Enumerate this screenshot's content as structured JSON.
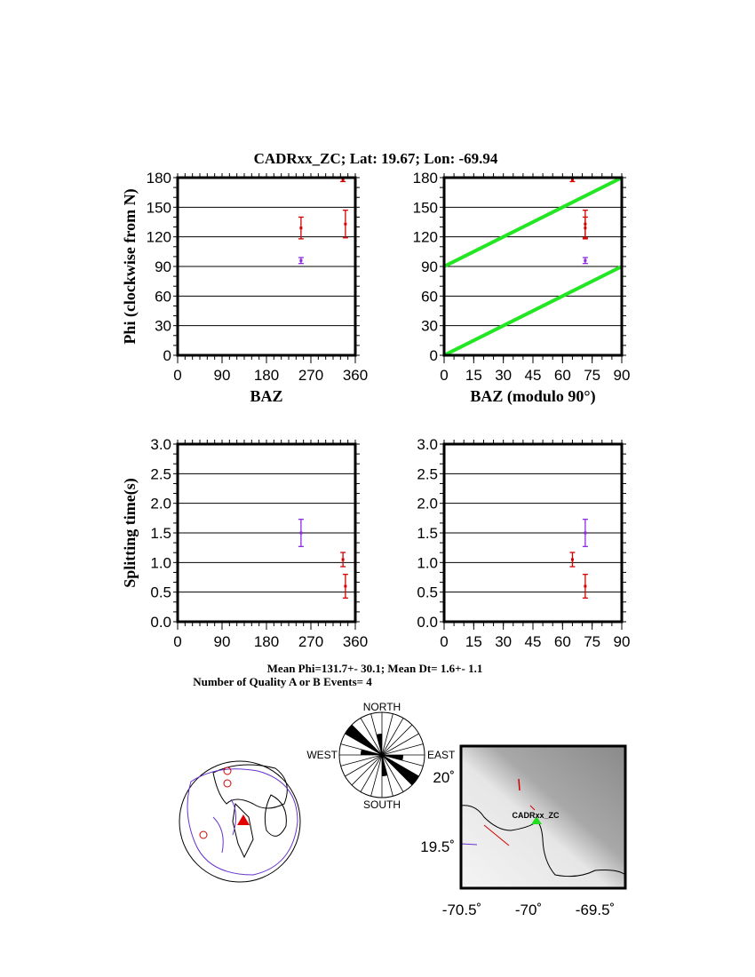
{
  "title": "CADRxx_ZC; Lat:  19.67;  Lon:  -69.94",
  "colors": {
    "event_red": "#d40000",
    "event_purple": "#8a2be2",
    "reference_line": "#22e622",
    "station": "#22dd22"
  },
  "chart_data": [
    {
      "type": "scatter",
      "ylabel": "Phi (clockwise from N)",
      "xlabel": "BAZ",
      "xlim": [
        0,
        360
      ],
      "ylim": [
        0,
        180
      ],
      "xticks": [
        0,
        90,
        180,
        270,
        360
      ],
      "yticks": [
        0,
        30,
        60,
        90,
        120,
        150,
        180
      ],
      "grid": true,
      "points": [
        {
          "x": 250,
          "y": 129,
          "err": 11,
          "color": "red"
        },
        {
          "x": 250,
          "y": 96,
          "err": 3,
          "color": "purple"
        },
        {
          "x": 340,
          "y": 133,
          "err": 14,
          "color": "red"
        },
        {
          "x": 335,
          "y": 178,
          "err": 2,
          "color": "red"
        }
      ]
    },
    {
      "type": "scatter",
      "ylabel": "",
      "xlabel": "BAZ (modulo 90°)",
      "xlim": [
        0,
        90
      ],
      "ylim": [
        0,
        180
      ],
      "xticks": [
        0,
        15,
        30,
        45,
        60,
        75,
        90
      ],
      "yticks": [
        0,
        30,
        60,
        90,
        120,
        150,
        180
      ],
      "grid": true,
      "reference_lines": [
        [
          [
            0,
            0
          ],
          [
            90,
            90
          ]
        ],
        [
          [
            0,
            90
          ],
          [
            90,
            180
          ]
        ]
      ],
      "points": [
        {
          "x": 71.5,
          "y": 129,
          "err": 11,
          "color": "red"
        },
        {
          "x": 71.5,
          "y": 96,
          "err": 3,
          "color": "purple"
        },
        {
          "x": 71.5,
          "y": 133,
          "err": 14,
          "color": "red"
        },
        {
          "x": 65,
          "y": 178,
          "err": 2,
          "color": "red"
        }
      ]
    },
    {
      "type": "scatter",
      "ylabel": "Splitting time(s)",
      "xlabel": "",
      "xlim": [
        0,
        360
      ],
      "ylim": [
        0,
        3
      ],
      "xticks": [
        0,
        90,
        180,
        270,
        360
      ],
      "yticks": [
        0.0,
        0.5,
        1.0,
        1.5,
        2.0,
        2.5,
        3.0
      ],
      "grid": true,
      "points": [
        {
          "x": 250,
          "y": 1.5,
          "err": 0.23,
          "color": "purple"
        },
        {
          "x": 335,
          "y": 1.05,
          "err": 0.12,
          "color": "red"
        },
        {
          "x": 340,
          "y": 0.6,
          "err": 0.2,
          "color": "red"
        }
      ]
    },
    {
      "type": "scatter",
      "ylabel": "",
      "xlabel": "",
      "xlim": [
        0,
        90
      ],
      "ylim": [
        0,
        3
      ],
      "xticks": [
        0,
        15,
        30,
        45,
        60,
        75,
        90
      ],
      "yticks": [
        0.0,
        0.5,
        1.0,
        1.5,
        2.0,
        2.5,
        3.0
      ],
      "grid": true,
      "points": [
        {
          "x": 71.5,
          "y": 1.5,
          "err": 0.23,
          "color": "purple"
        },
        {
          "x": 65,
          "y": 1.05,
          "err": 0.12,
          "color": "red"
        },
        {
          "x": 71.5,
          "y": 0.6,
          "err": 0.2,
          "color": "red"
        }
      ]
    }
  ],
  "summary": {
    "mean_line": "Mean Phi=131.7+- 30.1; Mean Dt=  1.6+-  1.1",
    "count_line": "Number of Quality A or B Events=  4"
  },
  "rose": {
    "north": "NORTH",
    "south": "SOUTH",
    "east": "EAST",
    "west": "WEST",
    "phis": [
      129,
      133,
      96,
      178
    ]
  },
  "map": {
    "station_label": "CADRxx_ZC",
    "station_lon": -69.94,
    "station_lat": 19.67,
    "lon_ticks": [
      "-70.5˚",
      "-70˚",
      "-69.5˚"
    ],
    "lat_ticks": [
      "20˚",
      "19.5˚"
    ]
  }
}
